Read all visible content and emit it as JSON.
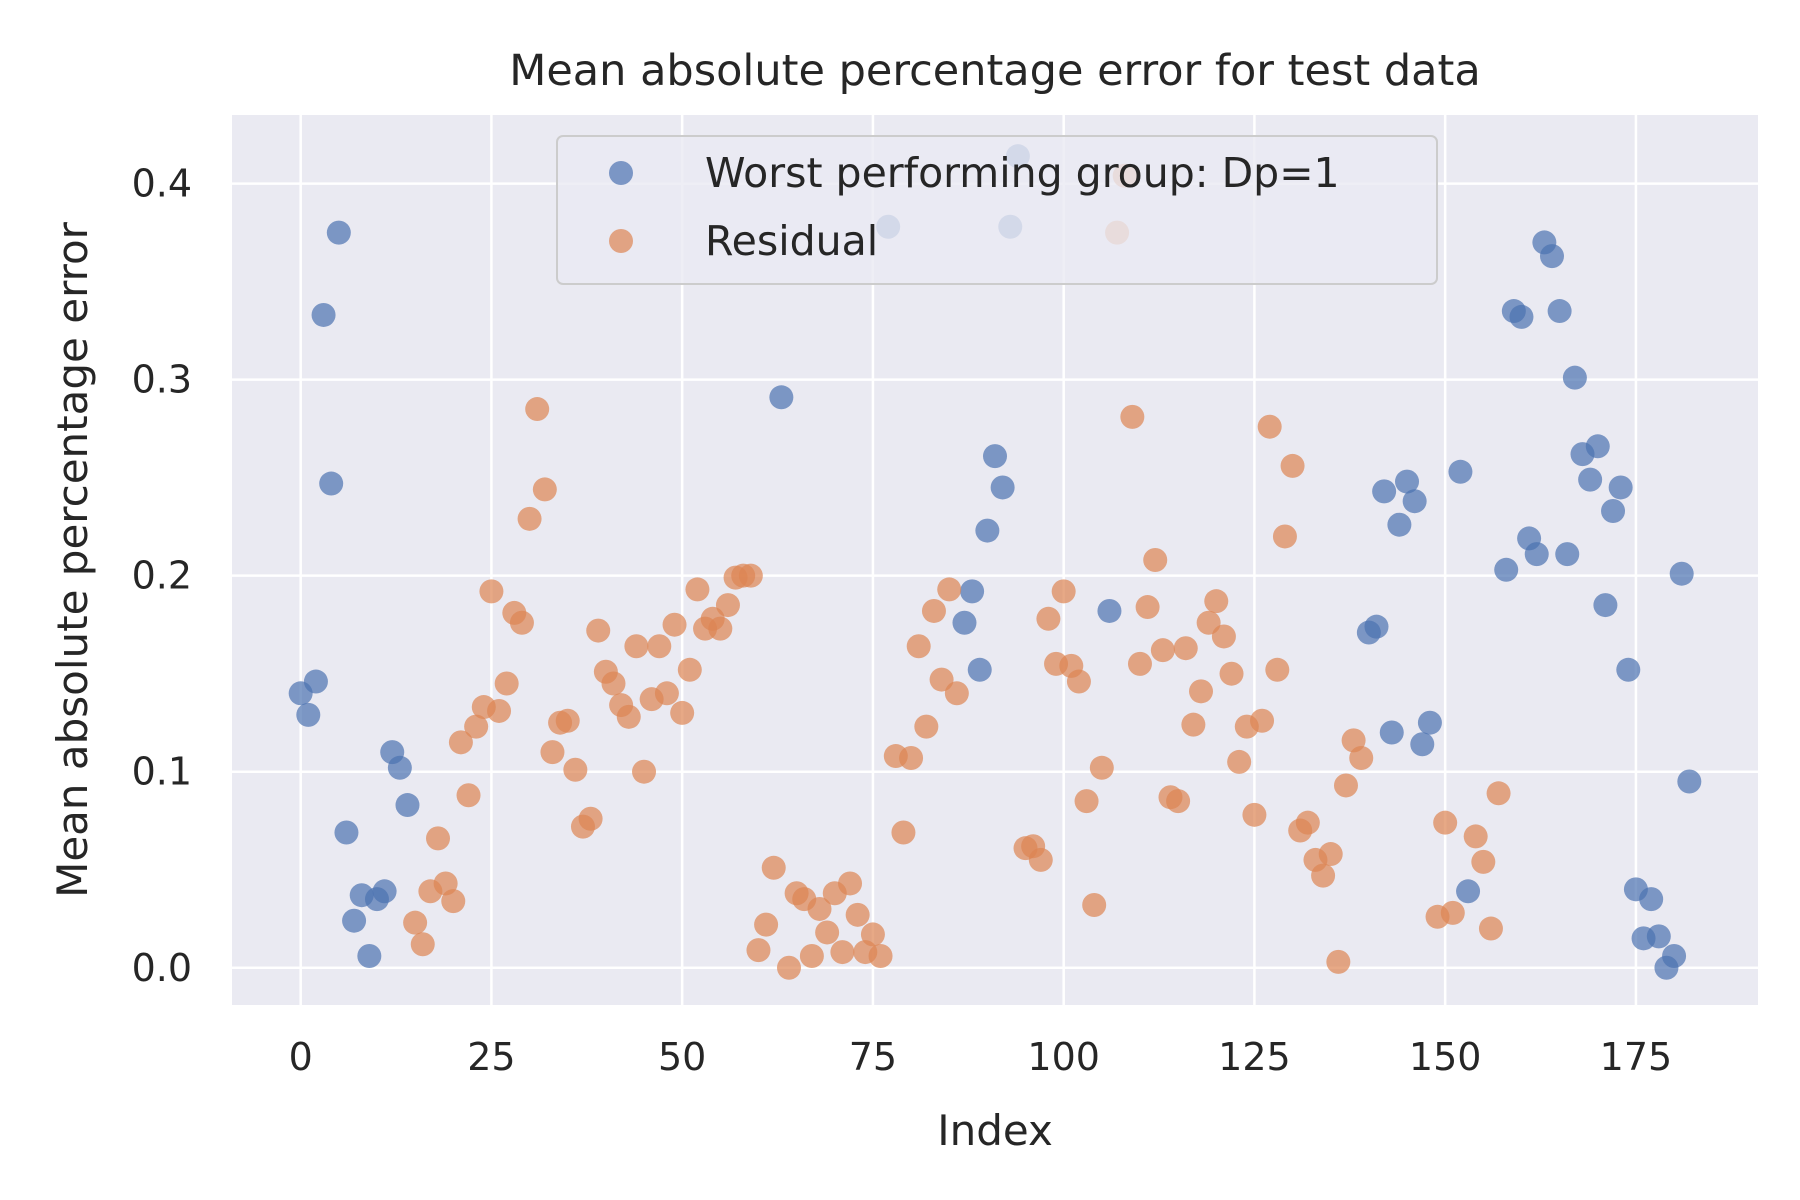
{
  "chart_data": {
    "type": "scatter",
    "title": "Mean absolute percentage error for test data",
    "xlabel": "Index",
    "ylabel": "Mean absolute percentage error",
    "xlim": [
      -9,
      191
    ],
    "ylim": [
      -0.019,
      0.435
    ],
    "xticks": [
      0,
      25,
      50,
      75,
      100,
      125,
      150,
      175
    ],
    "yticks": [
      0.0,
      0.1,
      0.2,
      0.3,
      0.4
    ],
    "grid": true,
    "legend_position": "top-center",
    "series": [
      {
        "name": "Worst performing group: Dp=1",
        "color": "#4c72b0",
        "points": [
          [
            0,
            0.14
          ],
          [
            1,
            0.129
          ],
          [
            2,
            0.146
          ],
          [
            3,
            0.333
          ],
          [
            4,
            0.247
          ],
          [
            5,
            0.375
          ],
          [
            6,
            0.069
          ],
          [
            7,
            0.024
          ],
          [
            8,
            0.037
          ],
          [
            9,
            0.006
          ],
          [
            10,
            0.035
          ],
          [
            11,
            0.039
          ],
          [
            12,
            0.11
          ],
          [
            13,
            0.102
          ],
          [
            14,
            0.083
          ],
          [
            63,
            0.291
          ],
          [
            77,
            0.378
          ],
          [
            87,
            0.176
          ],
          [
            88,
            0.192
          ],
          [
            89,
            0.152
          ],
          [
            90,
            0.223
          ],
          [
            91,
            0.261
          ],
          [
            92,
            0.245
          ],
          [
            93,
            0.378
          ],
          [
            94,
            0.414
          ],
          [
            106,
            0.182
          ],
          [
            140,
            0.171
          ],
          [
            141,
            0.174
          ],
          [
            142,
            0.243
          ],
          [
            143,
            0.12
          ],
          [
            144,
            0.226
          ],
          [
            145,
            0.248
          ],
          [
            146,
            0.238
          ],
          [
            147,
            0.114
          ],
          [
            148,
            0.125
          ],
          [
            152,
            0.253
          ],
          [
            153,
            0.039
          ],
          [
            158,
            0.203
          ],
          [
            159,
            0.335
          ],
          [
            160,
            0.332
          ],
          [
            161,
            0.219
          ],
          [
            162,
            0.211
          ],
          [
            163,
            0.37
          ],
          [
            164,
            0.363
          ],
          [
            165,
            0.335
          ],
          [
            166,
            0.211
          ],
          [
            167,
            0.301
          ],
          [
            168,
            0.262
          ],
          [
            169,
            0.249
          ],
          [
            170,
            0.266
          ],
          [
            171,
            0.185
          ],
          [
            172,
            0.233
          ],
          [
            173,
            0.245
          ],
          [
            174,
            0.152
          ],
          [
            175,
            0.04
          ],
          [
            176,
            0.015
          ],
          [
            177,
            0.035
          ],
          [
            178,
            0.016
          ],
          [
            179,
            0.0
          ],
          [
            180,
            0.006
          ],
          [
            181,
            0.201
          ],
          [
            182,
            0.095
          ]
        ]
      },
      {
        "name": "Residual",
        "color": "#dd8452",
        "points": [
          [
            15,
            0.023
          ],
          [
            16,
            0.012
          ],
          [
            17,
            0.039
          ],
          [
            18,
            0.066
          ],
          [
            19,
            0.043
          ],
          [
            20,
            0.034
          ],
          [
            21,
            0.115
          ],
          [
            22,
            0.088
          ],
          [
            23,
            0.123
          ],
          [
            24,
            0.133
          ],
          [
            25,
            0.192
          ],
          [
            26,
            0.131
          ],
          [
            27,
            0.145
          ],
          [
            28,
            0.181
          ],
          [
            29,
            0.176
          ],
          [
            30,
            0.229
          ],
          [
            31,
            0.285
          ],
          [
            32,
            0.244
          ],
          [
            33,
            0.11
          ],
          [
            34,
            0.125
          ],
          [
            35,
            0.126
          ],
          [
            36,
            0.101
          ],
          [
            37,
            0.072
          ],
          [
            38,
            0.076
          ],
          [
            39,
            0.172
          ],
          [
            40,
            0.151
          ],
          [
            41,
            0.145
          ],
          [
            42,
            0.134
          ],
          [
            43,
            0.128
          ],
          [
            44,
            0.164
          ],
          [
            45,
            0.1
          ],
          [
            46,
            0.137
          ],
          [
            47,
            0.164
          ],
          [
            48,
            0.14
          ],
          [
            49,
            0.175
          ],
          [
            50,
            0.13
          ],
          [
            51,
            0.152
          ],
          [
            52,
            0.193
          ],
          [
            53,
            0.173
          ],
          [
            54,
            0.178
          ],
          [
            55,
            0.173
          ],
          [
            56,
            0.185
          ],
          [
            57,
            0.199
          ],
          [
            58,
            0.2
          ],
          [
            59,
            0.2
          ],
          [
            60,
            0.009
          ],
          [
            61,
            0.022
          ],
          [
            62,
            0.051
          ],
          [
            64,
            0.0
          ],
          [
            65,
            0.038
          ],
          [
            66,
            0.035
          ],
          [
            67,
            0.006
          ],
          [
            68,
            0.03
          ],
          [
            69,
            0.018
          ],
          [
            70,
            0.038
          ],
          [
            71,
            0.008
          ],
          [
            72,
            0.043
          ],
          [
            73,
            0.027
          ],
          [
            74,
            0.008
          ],
          [
            75,
            0.017
          ],
          [
            76,
            0.006
          ],
          [
            78,
            0.108
          ],
          [
            79,
            0.069
          ],
          [
            80,
            0.107
          ],
          [
            81,
            0.164
          ],
          [
            82,
            0.123
          ],
          [
            83,
            0.182
          ],
          [
            84,
            0.147
          ],
          [
            85,
            0.193
          ],
          [
            86,
            0.14
          ],
          [
            95,
            0.061
          ],
          [
            96,
            0.062
          ],
          [
            97,
            0.055
          ],
          [
            98,
            0.178
          ],
          [
            99,
            0.155
          ],
          [
            100,
            0.192
          ],
          [
            101,
            0.154
          ],
          [
            102,
            0.146
          ],
          [
            103,
            0.085
          ],
          [
            104,
            0.032
          ],
          [
            105,
            0.102
          ],
          [
            107,
            0.375
          ],
          [
            108,
            0.404
          ],
          [
            109,
            0.281
          ],
          [
            110,
            0.155
          ],
          [
            111,
            0.184
          ],
          [
            112,
            0.208
          ],
          [
            113,
            0.162
          ],
          [
            114,
            0.087
          ],
          [
            115,
            0.085
          ],
          [
            116,
            0.163
          ],
          [
            117,
            0.124
          ],
          [
            118,
            0.141
          ],
          [
            119,
            0.176
          ],
          [
            120,
            0.187
          ],
          [
            121,
            0.169
          ],
          [
            122,
            0.15
          ],
          [
            123,
            0.105
          ],
          [
            124,
            0.123
          ],
          [
            125,
            0.078
          ],
          [
            126,
            0.126
          ],
          [
            127,
            0.276
          ],
          [
            128,
            0.152
          ],
          [
            129,
            0.22
          ],
          [
            130,
            0.256
          ],
          [
            131,
            0.07
          ],
          [
            132,
            0.074
          ],
          [
            133,
            0.055
          ],
          [
            134,
            0.047
          ],
          [
            135,
            0.058
          ],
          [
            136,
            0.003
          ],
          [
            137,
            0.093
          ],
          [
            138,
            0.116
          ],
          [
            139,
            0.107
          ],
          [
            149,
            0.026
          ],
          [
            150,
            0.074
          ],
          [
            151,
            0.028
          ],
          [
            154,
            0.067
          ],
          [
            155,
            0.054
          ],
          [
            156,
            0.02
          ],
          [
            157,
            0.089
          ]
        ]
      }
    ]
  }
}
